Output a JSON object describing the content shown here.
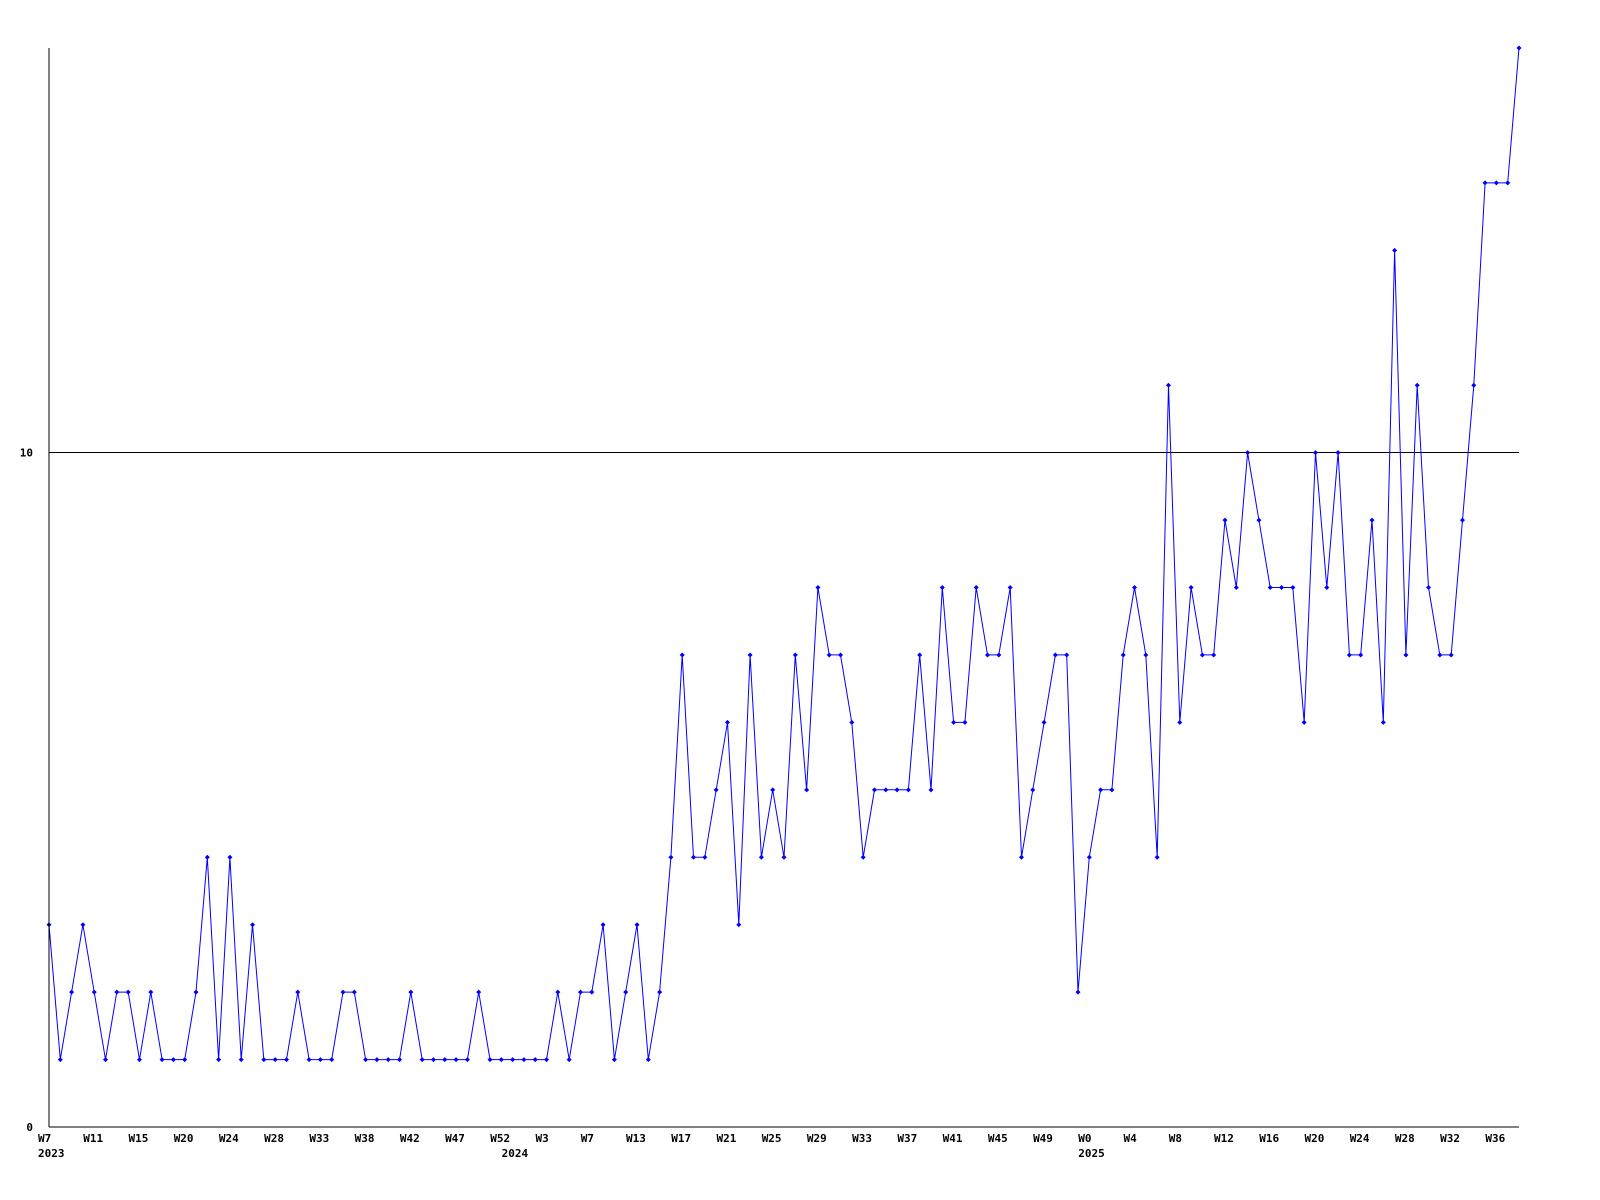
{
  "chart_data": {
    "type": "line",
    "title": "",
    "xlabel": "",
    "ylabel": "",
    "ylim": [
      0,
      16
    ],
    "y_ticks": [
      "0",
      "10"
    ],
    "y_tick_values": [
      0,
      10
    ],
    "gridline_at": 10,
    "grid": false,
    "legend": "none",
    "colors": {
      "series": "#0000ff",
      "axis": "#000000",
      "background": "#ffffff"
    },
    "x_tick_labels": [
      "W7",
      "W11",
      "W15",
      "W20",
      "W24",
      "W28",
      "W33",
      "W38",
      "W42",
      "W47",
      "W52",
      "W3",
      "W7",
      "W13",
      "W17",
      "W21",
      "W25",
      "W29",
      "W33",
      "W37",
      "W41",
      "W45",
      "W49",
      "W0",
      "W4",
      "W8",
      "W12",
      "W16",
      "W20",
      "W24",
      "W28",
      "W32",
      "W36"
    ],
    "x_tick_every": 4,
    "year_labels": [
      {
        "label": "2023",
        "index": 0
      },
      {
        "label": "2024",
        "index": 41
      },
      {
        "label": "2025",
        "index": 92
      }
    ],
    "series": [
      {
        "values": [
          3,
          1,
          2,
          3,
          2,
          1,
          2,
          2,
          1,
          2,
          1,
          1,
          1,
          2,
          4,
          1,
          4,
          1,
          3,
          1,
          1,
          1,
          2,
          1,
          1,
          1,
          2,
          2,
          1,
          1,
          1,
          1,
          2,
          1,
          1,
          1,
          1,
          1,
          2,
          1,
          1,
          1,
          1,
          1,
          1,
          2,
          1,
          2,
          2,
          3,
          1,
          2,
          3,
          1,
          2,
          4,
          7,
          4,
          4,
          5,
          6,
          3,
          7,
          4,
          5,
          4,
          7,
          5,
          8,
          7,
          7,
          6,
          4,
          5,
          5,
          5,
          5,
          7,
          5,
          8,
          6,
          6,
          8,
          7,
          7,
          8,
          4,
          5,
          6,
          7,
          7,
          2,
          4,
          5,
          5,
          7,
          8,
          7,
          4,
          11,
          6,
          8,
          7,
          7,
          9,
          8,
          10,
          9,
          8,
          8,
          8,
          6,
          10,
          8,
          10,
          7,
          7,
          9,
          6,
          13,
          7,
          11,
          8,
          7,
          7,
          9,
          11,
          14,
          14,
          14,
          16
        ]
      }
    ]
  }
}
